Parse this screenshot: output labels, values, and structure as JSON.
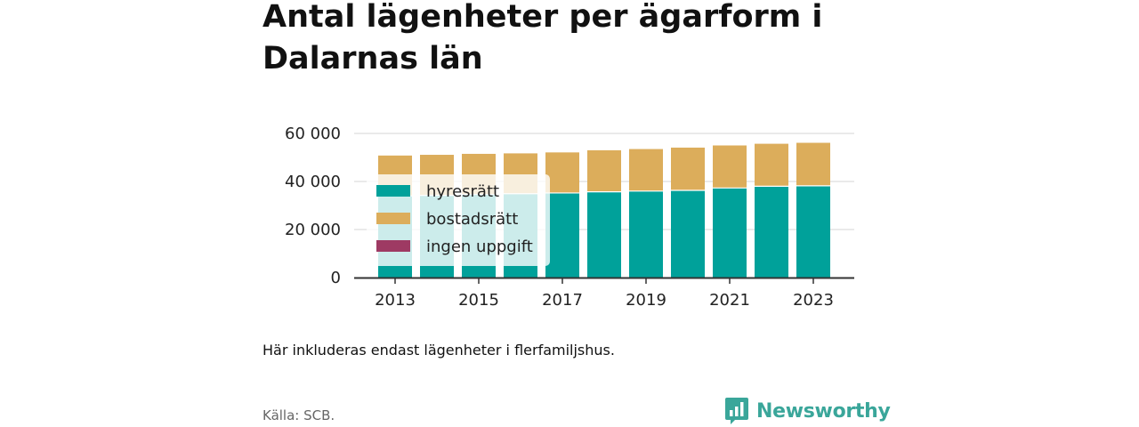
{
  "title": "Antal lägenheter per ägarform i Dalarnas län",
  "note": "Här inkluderas endast lägenheter i flerfamiljshus.",
  "source": "Källa: SCB.",
  "brand": {
    "name": "Newsworthy",
    "icon": "bar-chart-speech-bubble-icon",
    "color": "#3aa69a"
  },
  "chart_data": {
    "type": "bar",
    "stacked": true,
    "categories": [
      "2013",
      "2014",
      "2015",
      "2016",
      "2017",
      "2018",
      "2019",
      "2020",
      "2021",
      "2022",
      "2023"
    ],
    "x_tick_labels": [
      "2013",
      "2015",
      "2017",
      "2019",
      "2021",
      "2023"
    ],
    "y_tick_labels": [
      "0",
      "20 000",
      "40 000",
      "60 000"
    ],
    "ylim": [
      0,
      60000
    ],
    "grid": true,
    "legend_position": "top-left",
    "series": [
      {
        "name": "hyresrätt",
        "color": "#00a19a",
        "values": [
          34000,
          34200,
          34600,
          34900,
          35200,
          35700,
          36000,
          36300,
          37300,
          38000,
          38200
        ]
      },
      {
        "name": "bostadsrätt",
        "color": "#dcad5b",
        "values": [
          16800,
          16900,
          16900,
          16800,
          16900,
          17300,
          17500,
          17800,
          17700,
          17700,
          17900
        ]
      },
      {
        "name": "ingen uppgift",
        "color": "#9e3a63",
        "values": [
          0,
          0,
          0,
          0,
          0,
          0,
          0,
          0,
          0,
          0,
          0
        ]
      }
    ]
  }
}
